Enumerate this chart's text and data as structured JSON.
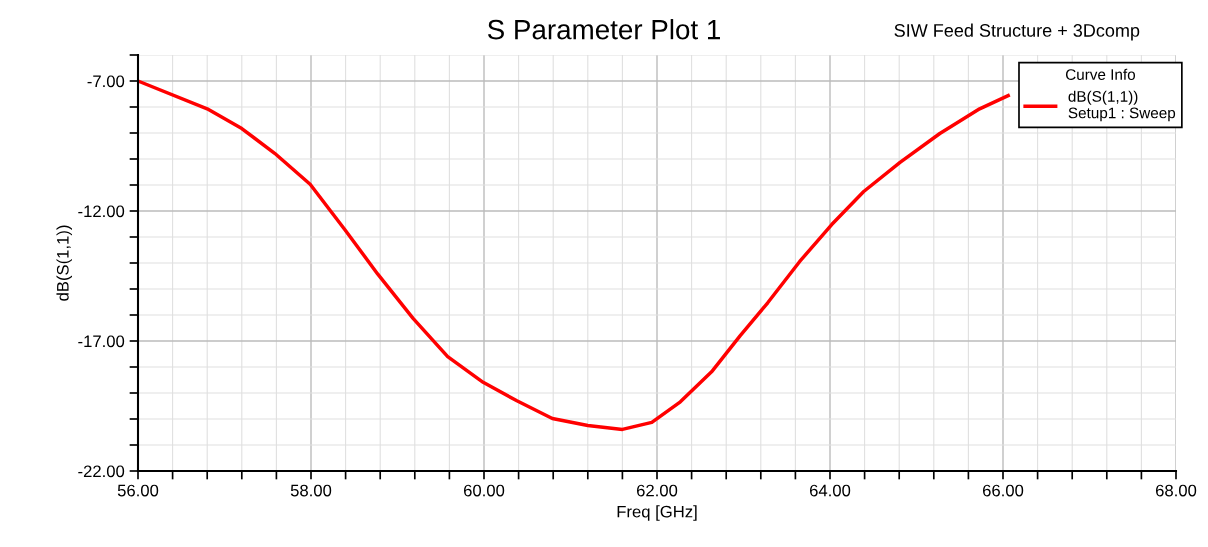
{
  "chart_data": {
    "type": "line",
    "title": "S Parameter Plot 1",
    "xlabel": "Freq [GHz]",
    "ylabel": "dB(S(1,1))",
    "annotations": [
      "SIW Feed Structure + 3Dcomp"
    ],
    "legend_title": "Curve Info",
    "legend": "top right",
    "grid": true,
    "marker": "none",
    "line_style": "solid",
    "xlim": [
      56,
      68
    ],
    "xticks": [
      {
        "value": 56,
        "label": "56.00"
      },
      {
        "value": 58,
        "label": "58.00"
      },
      {
        "value": 60,
        "label": "60.00"
      },
      {
        "value": 62,
        "label": "62.00"
      },
      {
        "value": 64,
        "label": "64.00"
      },
      {
        "value": 66,
        "label": "66.00"
      },
      {
        "value": 68,
        "label": "68.00"
      }
    ],
    "ylim": [
      -22,
      -6
    ],
    "yticks": [
      {
        "value": -22,
        "label": "-22.00"
      },
      {
        "value": -17,
        "label": "-17.00"
      },
      {
        "value": -12,
        "label": "-12.00"
      },
      {
        "value": -7,
        "label": "-7.00"
      }
    ],
    "x": [
      56.0,
      56.8,
      57.2,
      57.58,
      57.99,
      58.39,
      58.77,
      59.18,
      59.58,
      59.99,
      60.38,
      60.79,
      61.2,
      61.6,
      61.94,
      62.27,
      62.64,
      62.96,
      63.28,
      63.65,
      64.02,
      64.39,
      64.81,
      65.27,
      65.73,
      66.06
    ],
    "series": [
      {
        "name": "dB(S(1,1))\nSetup1 : Sweep",
        "color": "#ff0000",
        "values": [
          -7.0,
          -8.07,
          -8.83,
          -9.78,
          -10.97,
          -12.71,
          -14.42,
          -16.13,
          -17.6,
          -18.59,
          -19.3,
          -19.98,
          -20.25,
          -20.4,
          -20.13,
          -19.34,
          -18.15,
          -16.8,
          -15.53,
          -13.94,
          -12.52,
          -11.25,
          -10.13,
          -9.02,
          -8.07,
          -7.56
        ]
      }
    ]
  }
}
